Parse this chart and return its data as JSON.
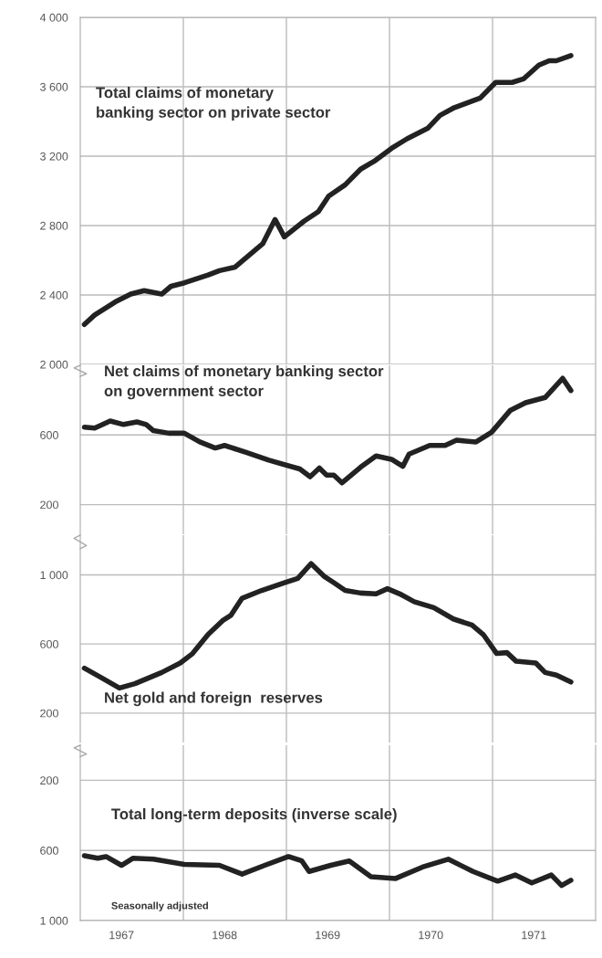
{
  "chart_data": [
    {
      "type": "line",
      "xlim": [
        1967,
        1972
      ],
      "ylim": [
        2000,
        4000
      ],
      "grid": true,
      "tick_labels": "y",
      "line_style": "solid",
      "marker": "none",
      "xticks": [
        {
          "value": 1968,
          "label": null
        },
        {
          "value": 1969,
          "label": null
        },
        {
          "value": 1970,
          "label": null
        },
        {
          "value": 1971,
          "label": null
        }
      ],
      "yticks": [
        {
          "value": 2000,
          "label": "2 000"
        },
        {
          "value": 2400,
          "label": "2 400"
        },
        {
          "value": 2800,
          "label": "2 800"
        },
        {
          "value": 3200,
          "label": "3 200"
        },
        {
          "value": 3600,
          "label": "3 600"
        },
        {
          "value": 4000,
          "label": "4 000"
        }
      ],
      "series": [
        {
          "name": "Total claims of monetary\nbanking sector on private sector",
          "color": "#222222",
          "x": [
            1967.04,
            1967.14,
            1967.34,
            1967.49,
            1967.62,
            1967.79,
            1967.88,
            1968.01,
            1968.24,
            1968.35,
            1968.5,
            1968.61,
            1968.77,
            1968.89,
            1968.98,
            1969.17,
            1969.31,
            1969.41,
            1969.57,
            1969.72,
            1969.85,
            1970.02,
            1970.17,
            1970.37,
            1970.49,
            1970.63,
            1970.88,
            1971.03,
            1971.19,
            1971.3,
            1971.45,
            1971.55,
            1971.62,
            1971.76
          ],
          "values": [
            2230,
            2285,
            2360,
            2405,
            2425,
            2405,
            2450,
            2470,
            2515,
            2540,
            2560,
            2615,
            2695,
            2835,
            2735,
            2825,
            2880,
            2970,
            3035,
            3125,
            3170,
            3245,
            3300,
            3360,
            3435,
            3480,
            3535,
            3625,
            3625,
            3645,
            3725,
            3750,
            3750,
            3780
          ]
        }
      ]
    },
    {
      "type": "line",
      "xlim": [
        1967,
        1972
      ],
      "ylim": [
        30,
        1000
      ],
      "grid": true,
      "tick_labels": "y",
      "line_style": "solid",
      "marker": "none",
      "xticks": [
        {
          "value": 1968,
          "label": null
        },
        {
          "value": 1969,
          "label": null
        },
        {
          "value": 1970,
          "label": null
        },
        {
          "value": 1971,
          "label": null
        }
      ],
      "yticks": [
        200,
        600
      ],
      "series": [
        {
          "name": "Net claims of monetary banking sector\non government sector",
          "color": "#222222",
          "x": [
            1967.04,
            1967.14,
            1967.29,
            1967.42,
            1967.55,
            1967.64,
            1967.71,
            1967.86,
            1968.01,
            1968.16,
            1968.31,
            1968.4,
            1968.61,
            1968.83,
            1969.13,
            1969.23,
            1969.32,
            1969.39,
            1969.46,
            1969.54,
            1969.72,
            1969.87,
            1970.02,
            1970.13,
            1970.19,
            1970.39,
            1970.54,
            1970.65,
            1970.84,
            1970.99,
            1971.17,
            1971.32,
            1971.51,
            1971.68,
            1971.76
          ],
          "values": [
            645,
            640,
            680,
            660,
            675,
            660,
            625,
            610,
            610,
            560,
            525,
            540,
            500,
            455,
            405,
            360,
            410,
            370,
            370,
            325,
            415,
            480,
            460,
            420,
            490,
            540,
            540,
            570,
            560,
            615,
            740,
            785,
            815,
            925,
            855
          ]
        }
      ]
    },
    {
      "type": "line",
      "xlim": [
        1967,
        1972
      ],
      "ylim": [
        30,
        1230
      ],
      "grid": true,
      "tick_labels": "y",
      "line_style": "solid",
      "marker": "none",
      "xticks": [
        {
          "value": 1968,
          "label": null
        },
        {
          "value": 1969,
          "label": null
        },
        {
          "value": 1970,
          "label": null
        },
        {
          "value": 1971,
          "label": null
        }
      ],
      "yticks": [
        200,
        600,
        {
          "value": 1000,
          "label": "1 000"
        }
      ],
      "series": [
        {
          "name": "Net gold and foreign  reserves",
          "color": "#222222",
          "x": [
            1967.04,
            1967.19,
            1967.38,
            1967.53,
            1967.79,
            1967.97,
            1968.09,
            1968.24,
            1968.38,
            1968.46,
            1968.57,
            1968.76,
            1968.98,
            1969.11,
            1969.24,
            1969.37,
            1969.46,
            1969.57,
            1969.72,
            1969.87,
            1969.98,
            1970.1,
            1970.24,
            1970.43,
            1970.62,
            1970.8,
            1970.91,
            1971.04,
            1971.14,
            1971.23,
            1971.42,
            1971.51,
            1971.62,
            1971.76
          ],
          "values": [
            460,
            410,
            345,
            370,
            435,
            490,
            545,
            655,
            735,
            765,
            865,
            910,
            955,
            980,
            1065,
            990,
            955,
            910,
            895,
            890,
            920,
            890,
            845,
            810,
            745,
            710,
            655,
            545,
            550,
            500,
            490,
            435,
            420,
            380
          ]
        }
      ]
    },
    {
      "type": "line",
      "xlim": [
        1967,
        1972
      ],
      "ylim": [
        1000,
        0
      ],
      "grid": true,
      "line_style": "solid",
      "marker": "none",
      "xticks": [
        {
          "value": 1968,
          "label": null
        },
        {
          "value": 1969,
          "label": null
        },
        {
          "value": 1970,
          "label": null
        },
        {
          "value": 1971,
          "label": null
        },
        {
          "value": 1967.4,
          "label": "1967"
        },
        {
          "value": 1968.4,
          "label": "1968"
        },
        {
          "value": 1969.4,
          "label": "1969"
        },
        {
          "value": 1970.4,
          "label": "1970"
        },
        {
          "value": 1971.4,
          "label": "1971"
        }
      ],
      "yticks": [
        200,
        600,
        {
          "value": 1000,
          "label": "1 000"
        }
      ],
      "annotations": [
        "Seasonally adjusted"
      ],
      "series": [
        {
          "name": "Total long-term deposits (inverse scale)",
          "color": "#222222",
          "x": [
            1967.04,
            1967.17,
            1967.25,
            1967.4,
            1967.51,
            1967.71,
            1968.01,
            1968.35,
            1968.57,
            1968.79,
            1969.02,
            1969.15,
            1969.22,
            1969.43,
            1969.61,
            1969.82,
            1970.06,
            1970.32,
            1970.57,
            1970.81,
            1971.05,
            1971.22,
            1971.38,
            1971.57,
            1971.67,
            1971.76
          ],
          "values": [
            630,
            645,
            635,
            685,
            645,
            650,
            680,
            685,
            735,
            685,
            635,
            660,
            720,
            685,
            660,
            750,
            760,
            695,
            650,
            720,
            775,
            740,
            785,
            740,
            800,
            770
          ]
        }
      ]
    }
  ]
}
